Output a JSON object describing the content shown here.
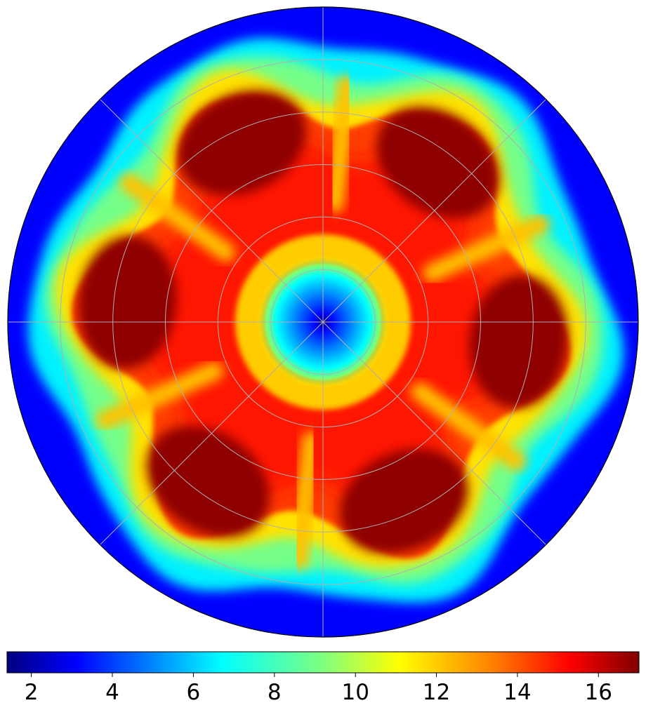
{
  "chart_data": {
    "type": "heatmap",
    "projection": "polar",
    "title": "",
    "xlabel": "",
    "ylabel": "",
    "grid": true,
    "colormap": "jet",
    "colorbar": {
      "orientation": "horizontal",
      "placement": "bottom",
      "range": [
        1.4,
        17.0
      ],
      "ticks": [
        2,
        4,
        6,
        8,
        10,
        12,
        14,
        16
      ],
      "tick_labels": [
        "2",
        "4",
        "6",
        "8",
        "10",
        "12",
        "14",
        "16"
      ]
    },
    "radial_grid_rings": 6,
    "angular_grid_spokes_deg": [
      0,
      45,
      90,
      135,
      180,
      225,
      270,
      315
    ],
    "field_levels": {
      "center_min": 1.6,
      "inner_ring": 9,
      "bulk": 15,
      "lobe_peak": 16.8,
      "boundary_layer": 9,
      "outer": 4
    },
    "lobes": 6
  },
  "colors": {
    "grid": "#b0b0b0",
    "frame": "#000000",
    "jet_stops": [
      "#00007f",
      "#0000ff",
      "#007fff",
      "#00ffff",
      "#7fff7f",
      "#ffff00",
      "#ff7f00",
      "#ff0000",
      "#7f0000"
    ]
  }
}
